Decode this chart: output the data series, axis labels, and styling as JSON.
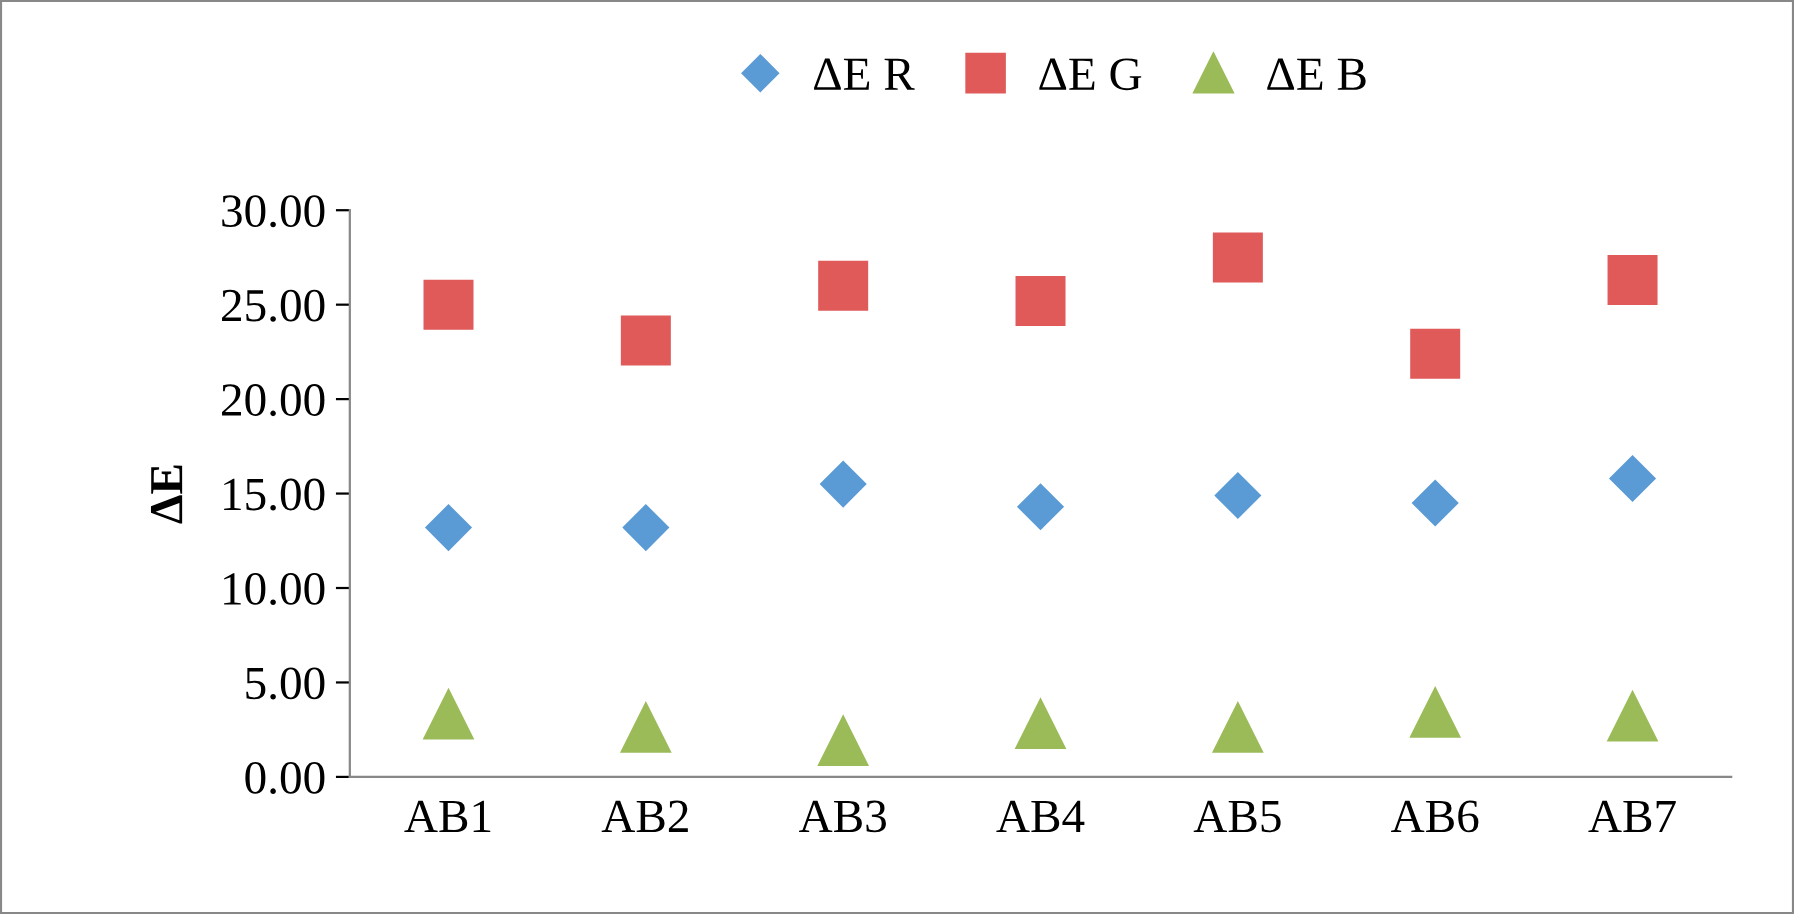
{
  "chart_data": {
    "type": "scatter",
    "ylabel": "ΔE",
    "categories": [
      "AB1",
      "AB2",
      "AB3",
      "AB4",
      "AB5",
      "AB6",
      "AB7"
    ],
    "series": [
      {
        "name": "ΔE R",
        "color": "#5b9bd5",
        "marker": "diamond",
        "values": [
          13.2,
          13.2,
          15.5,
          14.3,
          14.9,
          14.5,
          15.8
        ]
      },
      {
        "name": "ΔE G",
        "color": "#e05a5a",
        "marker": "square",
        "values": [
          25.0,
          23.1,
          26.0,
          25.2,
          27.5,
          22.4,
          26.3
        ]
      },
      {
        "name": "ΔE B",
        "color": "#9bbb59",
        "marker": "triangle",
        "values": [
          3.3,
          2.6,
          1.9,
          2.8,
          2.6,
          3.4,
          3.2
        ]
      }
    ],
    "ylim": [
      0,
      30
    ],
    "yticks": [
      {
        "value": 0,
        "label": "0.00"
      },
      {
        "value": 5,
        "label": "5.00"
      },
      {
        "value": 10,
        "label": "10.00"
      },
      {
        "value": 15,
        "label": "15.00"
      },
      {
        "value": 20,
        "label": "20.00"
      },
      {
        "value": 25,
        "label": "25.00"
      },
      {
        "value": 30,
        "label": "30.00"
      }
    ],
    "grid": false,
    "legend": "top"
  }
}
